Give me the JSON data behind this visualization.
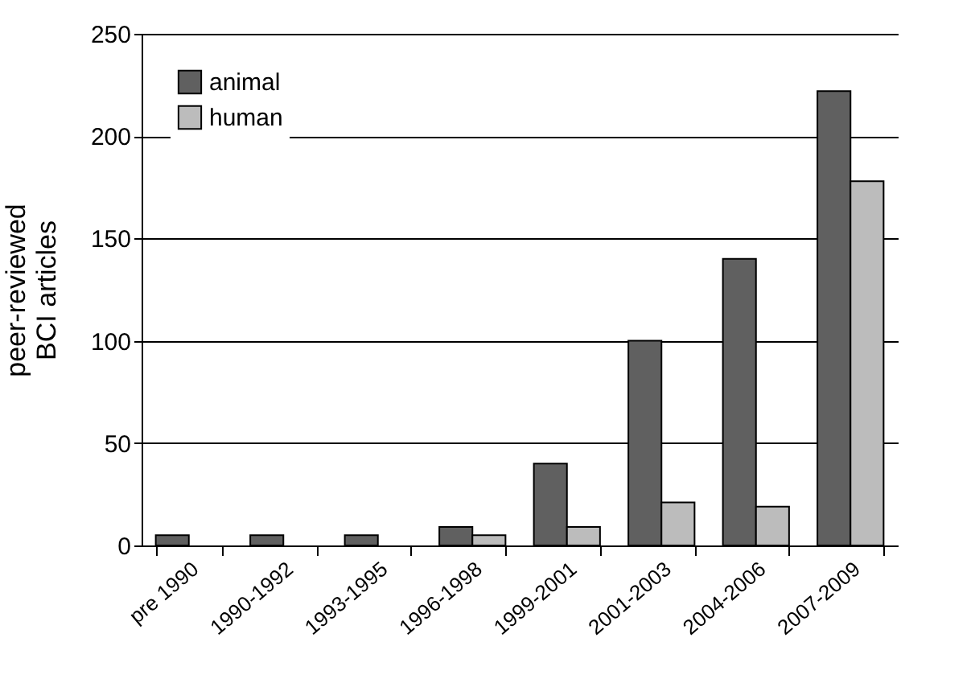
{
  "chart_data": {
    "type": "bar",
    "ylabel": "peer-reviewed\nBCI articles",
    "categories": [
      "pre 1990",
      "1990-1992",
      "1993-1995",
      "1996-1998",
      "1999-2001",
      "2001-2003",
      "2004-2006",
      "2007-2009"
    ],
    "series": [
      {
        "name": "animal",
        "color": "#606060",
        "values": [
          5,
          5,
          5,
          9,
          40,
          100,
          140,
          222
        ]
      },
      {
        "name": "human",
        "color": "#bcbcbc",
        "values": [
          null,
          null,
          null,
          5,
          9,
          21,
          19,
          178
        ]
      }
    ],
    "ylim": [
      0,
      250
    ],
    "yticks": [
      0,
      50,
      100,
      150,
      200,
      250
    ],
    "grid": "y",
    "legend": "top left"
  }
}
